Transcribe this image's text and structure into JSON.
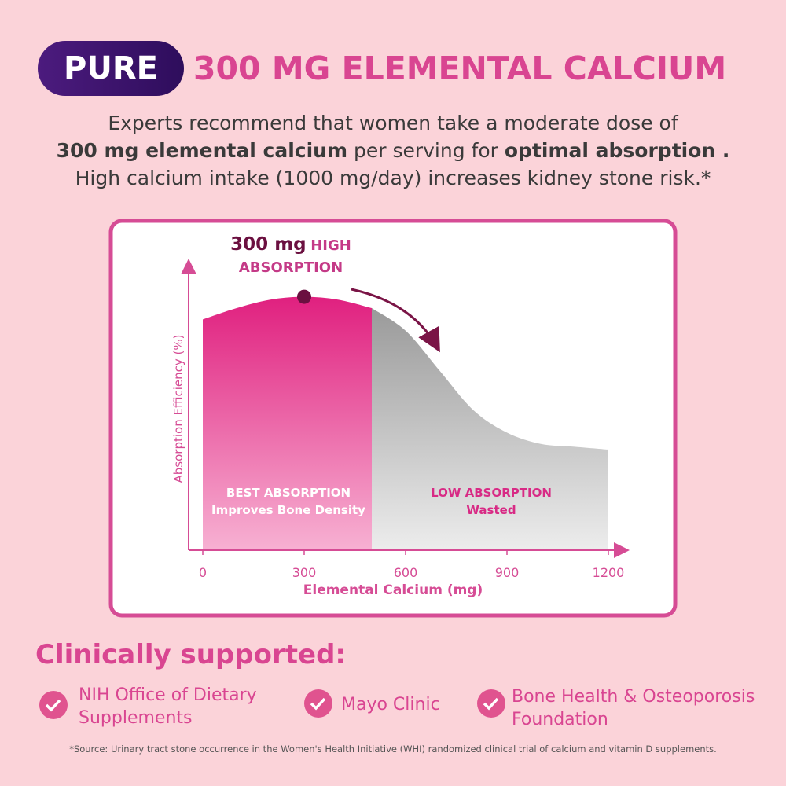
{
  "header": {
    "badge": "PURE",
    "title": "300 MG ELEMENTAL CALCIUM"
  },
  "intro": {
    "line1": "Experts recommend that women take a moderate dose of",
    "line2_bold1": "300 mg elemental calcium",
    "line2_text": "per serving for",
    "line2_bold2": "optimal absorption .",
    "line3": "High calcium intake (1000 mg/day) increases kidney stone risk.*"
  },
  "chart_data": {
    "type": "area",
    "x": [
      0,
      100,
      200,
      300,
      400,
      500,
      600,
      700,
      800,
      900,
      1000,
      1100,
      1200
    ],
    "values": [
      81,
      85,
      88,
      89,
      88,
      85,
      77,
      63,
      49,
      41,
      37,
      36,
      35
    ],
    "xlim": [
      0,
      1200
    ],
    "xticks": [
      0,
      300,
      600,
      900,
      1200
    ],
    "ylim": [
      0,
      100
    ],
    "x_label": "Elemental Calcium (mg)",
    "y_label": "Absorption Efficiency (%)",
    "highlight_range": [
      0,
      500
    ],
    "highlight_color": "#e0207f",
    "rest_color": "#9a9a9a",
    "marker_x": 300,
    "marker_y": 89,
    "annotation_value": "300 mg",
    "annotation_text": "HIGH ABSORPTION",
    "region1_title": "BEST ABSORPTION",
    "region1_text": "Improves Bone Density",
    "region2_title": "LOW ABSORPTION",
    "region2_text": "Wasted"
  },
  "support": {
    "title": "Clinically supported:",
    "items": [
      "NIH  Office of Dietary Supplements",
      "Mayo Clinic",
      "Bone Health & Osteoporosis Foundation"
    ]
  },
  "footnote": "*Source: Urinary tract stone occurrence in the Women's Health Initiative (WHI) randomized clinical trial of calcium and vitamin D supplements."
}
